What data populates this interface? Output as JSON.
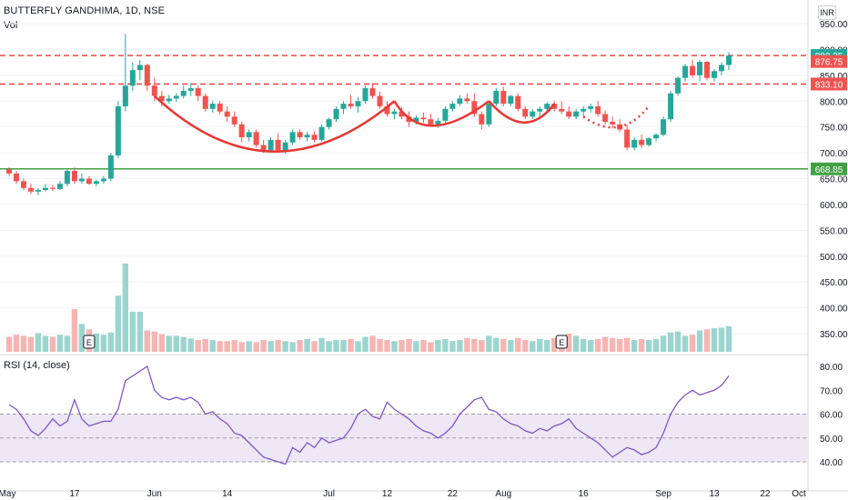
{
  "header": {
    "title": "BUTTERFLY GANDHIMA, 1D, NSE",
    "volume_label": "Vol",
    "rsi_label": "RSI (14, close)",
    "currency": "INR"
  },
  "colors": {
    "up": "#26a69a",
    "down": "#ef5350",
    "resistance": "#e53935",
    "support": "#43a047",
    "rsi_line": "#7e57c2",
    "rsi_band": "#ede7f6",
    "grid": "#f0f3fa",
    "axis_text": "#131722"
  },
  "chart_data": [
    {
      "type": "candlestick",
      "title": "BUTTERFLY GANDHIMA, 1D, NSE",
      "y_axis_ticks": [
        950,
        900,
        850,
        800,
        750,
        700,
        650,
        600,
        550,
        500,
        450,
        400,
        350
      ],
      "x_axis_ticks": [
        "May",
        "17",
        "Jun",
        "14",
        "Jul",
        "12",
        "22",
        "Aug",
        "16",
        "Sep",
        "13",
        "22",
        "Oct"
      ],
      "price_labels": [
        {
          "value": 888.35,
          "text": "888.35",
          "color": "#26a69a"
        },
        {
          "value": 876.75,
          "text": "876.75",
          "color": "#ef5350"
        },
        {
          "value": 833.1,
          "text": "833.10",
          "color": "#ef5350"
        },
        {
          "value": 668.85,
          "text": "668.85",
          "color": "#43a047"
        }
      ],
      "horizontal_lines": [
        {
          "value": 888.35,
          "style": "dashed",
          "color": "#e53935"
        },
        {
          "value": 833.1,
          "style": "dashed",
          "color": "#e53935"
        },
        {
          "value": 668.85,
          "style": "solid",
          "color": "#43a047"
        }
      ],
      "earnings_markers": [
        {
          "index": 11,
          "text": "E"
        },
        {
          "index": 76,
          "text": "E"
        }
      ],
      "candles": [
        [
          668,
          672,
          655,
          660
        ],
        [
          660,
          665,
          640,
          645
        ],
        [
          645,
          650,
          628,
          632
        ],
        [
          632,
          640,
          620,
          625
        ],
        [
          625,
          632,
          618,
          628
        ],
        [
          628,
          640,
          625,
          632
        ],
        [
          632,
          638,
          626,
          630
        ],
        [
          630,
          645,
          628,
          640
        ],
        [
          640,
          670,
          635,
          665
        ],
        [
          665,
          672,
          640,
          645
        ],
        [
          645,
          660,
          640,
          650
        ],
        [
          650,
          655,
          638,
          640
        ],
        [
          640,
          648,
          635,
          645
        ],
        [
          645,
          655,
          640,
          650
        ],
        [
          650,
          700,
          645,
          695
        ],
        [
          695,
          800,
          690,
          790
        ],
        [
          790,
          930,
          780,
          830
        ],
        [
          830,
          875,
          820,
          860
        ],
        [
          860,
          880,
          840,
          870
        ],
        [
          870,
          872,
          820,
          830
        ],
        [
          830,
          845,
          800,
          810
        ],
        [
          810,
          820,
          790,
          800
        ],
        [
          800,
          812,
          795,
          805
        ],
        [
          805,
          815,
          798,
          810
        ],
        [
          810,
          830,
          805,
          820
        ],
        [
          820,
          835,
          810,
          825
        ],
        [
          825,
          830,
          800,
          810
        ],
        [
          810,
          815,
          780,
          785
        ],
        [
          785,
          800,
          778,
          795
        ],
        [
          795,
          800,
          775,
          780
        ],
        [
          780,
          790,
          760,
          770
        ],
        [
          770,
          780,
          750,
          755
        ],
        [
          755,
          760,
          720,
          730
        ],
        [
          730,
          745,
          722,
          740
        ],
        [
          740,
          745,
          710,
          715
        ],
        [
          715,
          725,
          700,
          705
        ],
        [
          705,
          730,
          702,
          725
        ],
        [
          725,
          738,
          700,
          705
        ],
        [
          705,
          725,
          698,
          720
        ],
        [
          720,
          745,
          715,
          740
        ],
        [
          740,
          745,
          725,
          730
        ],
        [
          730,
          740,
          722,
          735
        ],
        [
          735,
          742,
          720,
          725
        ],
        [
          725,
          755,
          722,
          750
        ],
        [
          750,
          768,
          745,
          765
        ],
        [
          765,
          790,
          760,
          785
        ],
        [
          785,
          800,
          775,
          795
        ],
        [
          795,
          812,
          785,
          790
        ],
        [
          790,
          808,
          778,
          800
        ],
        [
          800,
          830,
          795,
          825
        ],
        [
          825,
          835,
          805,
          810
        ],
        [
          810,
          818,
          785,
          790
        ],
        [
          790,
          800,
          770,
          775
        ],
        [
          775,
          785,
          765,
          780
        ],
        [
          780,
          788,
          765,
          770
        ],
        [
          770,
          780,
          750,
          760
        ],
        [
          760,
          772,
          755,
          768
        ],
        [
          768,
          778,
          758,
          765
        ],
        [
          765,
          775,
          750,
          755
        ],
        [
          755,
          768,
          748,
          762
        ],
        [
          762,
          790,
          755,
          785
        ],
        [
          785,
          800,
          780,
          795
        ],
        [
          795,
          812,
          790,
          805
        ],
        [
          805,
          815,
          795,
          800
        ],
        [
          800,
          815,
          770,
          775
        ],
        [
          775,
          780,
          745,
          755
        ],
        [
          755,
          800,
          750,
          795
        ],
        [
          795,
          825,
          790,
          820
        ],
        [
          820,
          828,
          790,
          795
        ],
        [
          795,
          812,
          790,
          810
        ],
        [
          810,
          815,
          780,
          785
        ],
        [
          785,
          790,
          765,
          770
        ],
        [
          770,
          785,
          765,
          780
        ],
        [
          780,
          790,
          770,
          785
        ],
        [
          785,
          798,
          780,
          795
        ],
        [
          795,
          800,
          780,
          785
        ],
        [
          785,
          800,
          775,
          780
        ],
        [
          780,
          790,
          765,
          770
        ],
        [
          770,
          785,
          765,
          780
        ],
        [
          780,
          790,
          770,
          785
        ],
        [
          785,
          795,
          778,
          790
        ],
        [
          790,
          800,
          770,
          775
        ],
        [
          775,
          782,
          755,
          760
        ],
        [
          760,
          770,
          748,
          755
        ],
        [
          755,
          765,
          740,
          745
        ],
        [
          745,
          755,
          705,
          710
        ],
        [
          710,
          730,
          705,
          725
        ],
        [
          725,
          735,
          710,
          715
        ],
        [
          715,
          730,
          712,
          728
        ],
        [
          728,
          738,
          722,
          735
        ],
        [
          735,
          770,
          732,
          765
        ],
        [
          765,
          820,
          760,
          815
        ],
        [
          815,
          848,
          810,
          845
        ],
        [
          845,
          872,
          838,
          868
        ],
        [
          868,
          880,
          845,
          850
        ],
        [
          850,
          880,
          838,
          876
        ],
        [
          876,
          878,
          840,
          845
        ],
        [
          845,
          862,
          838,
          858
        ],
        [
          858,
          875,
          850,
          870
        ],
        [
          870,
          895,
          860,
          888
        ]
      ],
      "volume": {
        "label": "Vol",
        "values": [
          28,
          32,
          30,
          28,
          35,
          30,
          28,
          32,
          30,
          80,
          52,
          42,
          34,
          32,
          36,
          105,
          165,
          75,
          75,
          40,
          38,
          33,
          30,
          30,
          28,
          25,
          22,
          24,
          22,
          20,
          20,
          22,
          18,
          20,
          18,
          22,
          20,
          22,
          20,
          18,
          22,
          24,
          20,
          26,
          20,
          22,
          22,
          24,
          20,
          28,
          30,
          24,
          22,
          20,
          22,
          24,
          20,
          22,
          18,
          22,
          24,
          20,
          22,
          26,
          24,
          22,
          30,
          26,
          24,
          22,
          26,
          22,
          20,
          24,
          22,
          26,
          28,
          34,
          30,
          24,
          22,
          24,
          28,
          26,
          24,
          26,
          22,
          24,
          22,
          24,
          30,
          36,
          38,
          30,
          32,
          40,
          42,
          44,
          45,
          48
        ],
        "up_color": "#9cd5cf",
        "down_color": "#f5b5b3"
      },
      "rsi": {
        "label": "RSI (14, close)",
        "ticks": [
          80.0,
          70.0,
          60.0,
          50.0,
          40.0
        ],
        "upper_band": 60,
        "lower_band": 40,
        "mid": 50,
        "values": [
          64,
          62,
          58,
          53,
          51,
          54,
          58,
          55,
          57,
          66,
          58,
          55,
          56,
          57,
          57,
          62,
          74,
          76,
          78,
          80,
          70,
          67,
          66,
          67,
          66,
          67,
          65,
          60,
          61,
          58,
          56,
          52,
          51,
          48,
          45,
          42,
          41,
          40,
          39,
          46,
          44,
          48,
          46,
          50,
          48,
          49,
          50,
          54,
          60,
          62,
          59,
          58,
          65,
          62,
          60,
          58,
          55,
          53,
          52,
          50,
          52,
          55,
          60,
          63,
          66,
          67,
          62,
          61,
          58,
          56,
          55,
          53,
          52,
          54,
          53,
          55,
          56,
          58,
          54,
          52,
          50,
          48,
          45,
          42,
          44,
          46,
          45,
          43,
          44,
          46,
          52,
          60,
          65,
          68,
          70,
          68,
          69,
          70,
          72,
          76
        ]
      }
    }
  ]
}
